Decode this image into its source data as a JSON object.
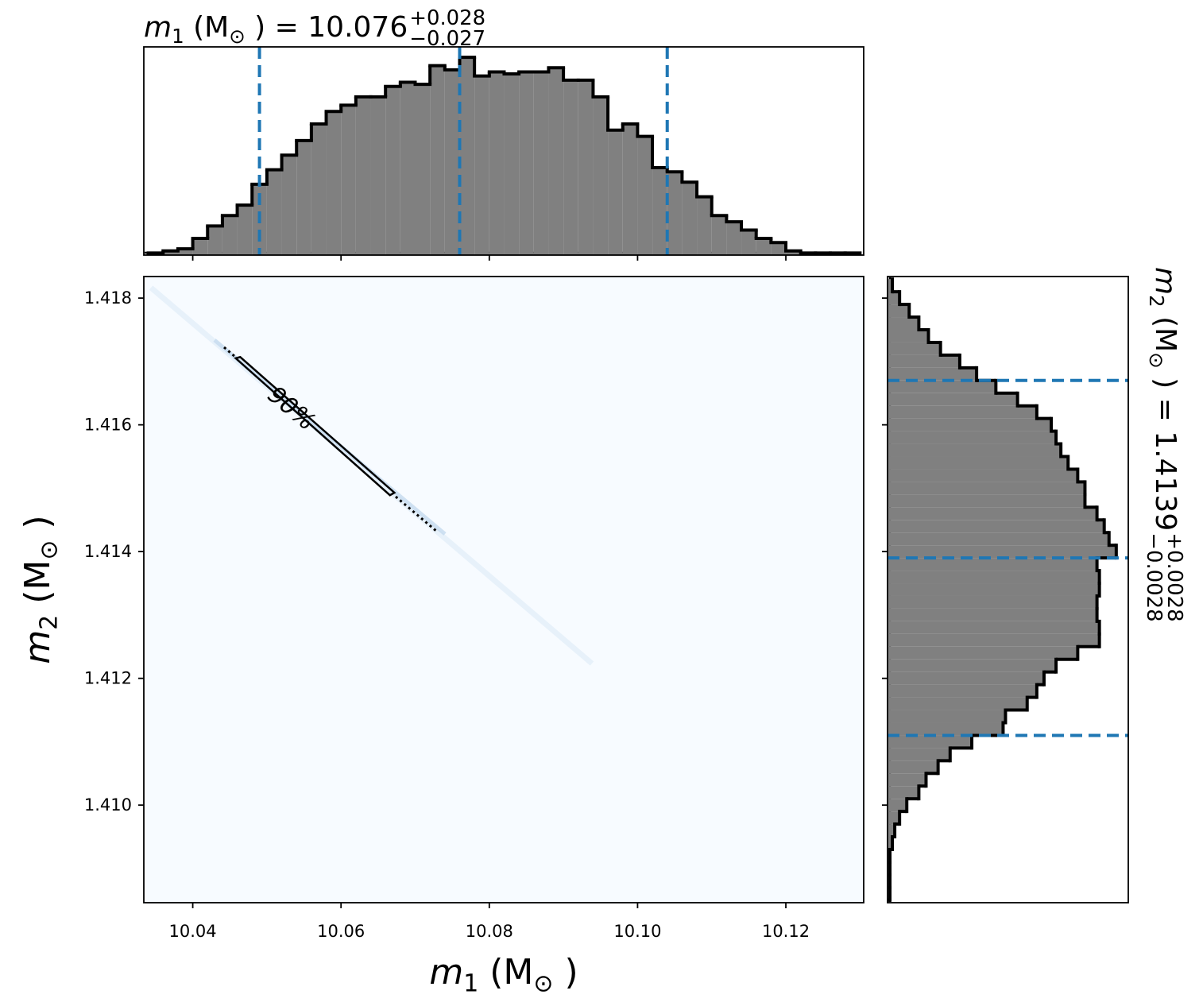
{
  "chart_data": [
    {
      "type": "histogram",
      "panel": "top",
      "title": {
        "var": "m",
        "var_sub": "1",
        "unit_open": " (M",
        "unit_sub": "⊙",
        "unit_close": " ) = 10.076",
        "upper": "+0.028",
        "lower": "−0.027"
      },
      "bins": [
        10.034,
        10.036,
        10.038,
        10.04,
        10.042,
        10.044,
        10.046,
        10.048,
        10.05,
        10.052,
        10.054,
        10.056,
        10.058,
        10.06,
        10.062,
        10.064,
        10.066,
        10.068,
        10.07,
        10.072,
        10.074,
        10.076,
        10.078,
        10.08,
        10.082,
        10.084,
        10.086,
        10.088,
        10.09,
        10.092,
        10.094,
        10.096,
        10.098,
        10.1,
        10.102,
        10.104,
        10.106,
        10.108,
        10.11,
        10.112,
        10.114,
        10.116,
        10.118,
        10.12,
        10.122,
        10.124,
        10.126,
        10.128,
        10.13
      ],
      "values": [
        1,
        2,
        3,
        8,
        14,
        19,
        24,
        34,
        41,
        48,
        55,
        63,
        69,
        72,
        76,
        76,
        81,
        83,
        82,
        91,
        89,
        95,
        86,
        88,
        87,
        88,
        88,
        90,
        84,
        84,
        76,
        60,
        63,
        57,
        42,
        40,
        35,
        28,
        19,
        16,
        12,
        8,
        6,
        2,
        1,
        1,
        1,
        1
      ],
      "color": "#808080",
      "edge_color": "#000000",
      "xlim": [
        10.0334,
        10.1305
      ],
      "ylim": [
        0,
        100
      ],
      "quantiles": [
        10.049,
        10.076,
        10.104
      ],
      "quantile_color": "#1f77b4"
    },
    {
      "type": "contour",
      "panel": "main",
      "x": [
        10.0458,
        10.0464,
        10.0672,
        10.0666
      ],
      "y": [
        1.41705,
        1.41707,
        1.41493,
        1.41489
      ],
      "level_label": "90%",
      "color": "#000000",
      "background": "#f7fbff",
      "xlim": [
        10.0334,
        10.1305
      ],
      "ylim": [
        1.40846,
        1.41834
      ],
      "xticks": [
        10.04,
        10.06,
        10.08,
        {
          "value": 10.1,
          "label": "10.10"
        },
        10.12
      ],
      "yticks": [
        {
          "value": 1.41,
          "label": "1.410"
        },
        1.412,
        1.414,
        1.416,
        1.418
      ],
      "xlabel": {
        "var": "m",
        "var_sub": "1",
        "unit_open": " (M",
        "unit_sub": "⊙",
        "unit_close": " )"
      },
      "ylabel": {
        "var": "m",
        "var_sub": "2",
        "unit_open": " (M",
        "unit_sub": "⊙",
        "unit_close": " )"
      }
    },
    {
      "type": "histogram",
      "panel": "right",
      "title": {
        "var": "m",
        "var_sub": "2",
        "unit_open": " (M",
        "unit_sub": "⊙",
        "unit_close": " ) = 1.4139",
        "upper": "+0.0028",
        "lower": "−0.0028"
      },
      "bins": [
        1.4085,
        1.4087,
        1.4089,
        1.4091,
        1.4093,
        1.4095,
        1.4097,
        1.4099,
        1.4101,
        1.4103,
        1.4105,
        1.4107,
        1.4109,
        1.4111,
        1.4113,
        1.4115,
        1.4117,
        1.4119,
        1.4121,
        1.4123,
        1.4125,
        1.4127,
        1.4129,
        1.4131,
        1.4133,
        1.4135,
        1.4137,
        1.4139,
        1.4141,
        1.4143,
        1.4145,
        1.4147,
        1.4149,
        1.4151,
        1.4153,
        1.4155,
        1.4157,
        1.4159,
        1.4161,
        1.4163,
        1.4165,
        1.4167,
        1.4169,
        1.4171,
        1.4173,
        1.4175,
        1.4177,
        1.4179,
        1.4181,
        1.4183
      ],
      "values": [
        1,
        1,
        1,
        1,
        2,
        3,
        5,
        8,
        13,
        16,
        21,
        26,
        35,
        48,
        49,
        58,
        62,
        65,
        70,
        79,
        88,
        88,
        87,
        87,
        88,
        88,
        87,
        95,
        92,
        90,
        87,
        82,
        82,
        79,
        75,
        72,
        70,
        68,
        62,
        54,
        45,
        37,
        30,
        22,
        17,
        13,
        9,
        5,
        2
      ],
      "color": "#808080",
      "edge_color": "#000000",
      "ylim": [
        1.40846,
        1.41834
      ],
      "xlim": [
        0,
        100
      ],
      "quantiles": [
        1.4111,
        1.4139,
        1.4167
      ],
      "quantile_color": "#1f77b4"
    }
  ]
}
